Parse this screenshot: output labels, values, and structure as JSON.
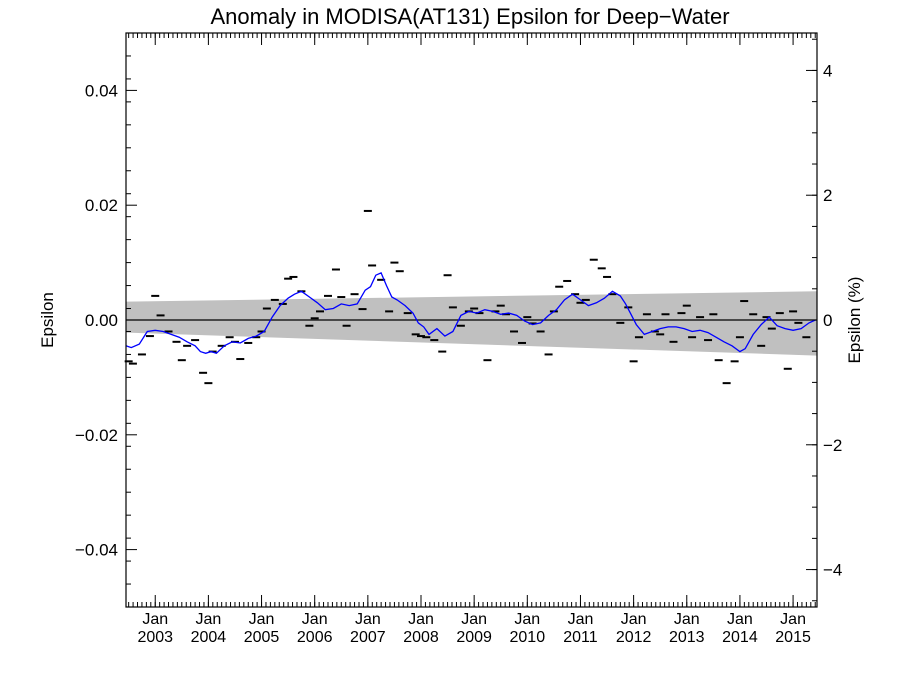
{
  "chart_data": {
    "type": "scatter",
    "title": "Anomaly in MODISA(AT131) Epsilon for Deep−Water",
    "ylabel": "Epsilon",
    "ylabel_right": "Epsilon (%)",
    "xlim": [
      2002.45,
      2015.45
    ],
    "ylim": [
      -0.05,
      0.05
    ],
    "y2lim": [
      -4.6,
      4.6
    ],
    "y_ticks": [
      -0.04,
      -0.02,
      0.0,
      0.02,
      0.04
    ],
    "y_tick_labels": [
      "−0.04",
      "−0.02",
      "0.00",
      "0.02",
      "0.04"
    ],
    "y2_ticks": [
      -4,
      -2,
      0,
      2,
      4
    ],
    "y2_tick_labels": [
      "−4",
      "−2",
      "0",
      "2",
      "4"
    ],
    "x_ticks": [
      2003,
      2004,
      2005,
      2006,
      2007,
      2008,
      2009,
      2010,
      2011,
      2012,
      2013,
      2014,
      2015
    ],
    "x_tick_month": "Jan",
    "x_tick_years": [
      "2003",
      "2004",
      "2005",
      "2006",
      "2007",
      "2008",
      "2009",
      "2010",
      "2011",
      "2012",
      "2013",
      "2014",
      "2015"
    ],
    "uncertainty_band": {
      "x": [
        2002.45,
        2015.45
      ],
      "upper": [
        0.0032,
        0.005
      ],
      "lower": [
        -0.0022,
        -0.0062
      ],
      "color": "#c0c0c0"
    },
    "zero_line": 0,
    "series": [
      {
        "kind": "points",
        "color": "#000000",
        "x": [
          2002.5,
          2002.58,
          2002.75,
          2002.9,
          2003.0,
          2003.1,
          2003.25,
          2003.4,
          2003.5,
          2003.6,
          2003.75,
          2003.9,
          2004.0,
          2004.08,
          2004.25,
          2004.4,
          2004.5,
          2004.6,
          2004.75,
          2004.9,
          2005.0,
          2005.1,
          2005.25,
          2005.4,
          2005.5,
          2005.6,
          2005.75,
          2005.9,
          2006.0,
          2006.1,
          2006.25,
          2006.4,
          2006.5,
          2006.6,
          2006.75,
          2006.9,
          2007.0,
          2007.08,
          2007.25,
          2007.4,
          2007.5,
          2007.6,
          2007.75,
          2007.9,
          2008.0,
          2008.1,
          2008.25,
          2008.4,
          2008.5,
          2008.6,
          2008.75,
          2008.9,
          2009.0,
          2009.1,
          2009.25,
          2009.4,
          2009.5,
          2009.6,
          2009.75,
          2009.9,
          2010.0,
          2010.1,
          2010.25,
          2010.4,
          2010.5,
          2010.6,
          2010.75,
          2010.9,
          2011.0,
          2011.1,
          2011.25,
          2011.4,
          2011.5,
          2011.6,
          2011.75,
          2011.9,
          2012.0,
          2012.1,
          2012.25,
          2012.4,
          2012.5,
          2012.6,
          2012.75,
          2012.9,
          2013.0,
          2013.1,
          2013.25,
          2013.4,
          2013.5,
          2013.6,
          2013.75,
          2013.9,
          2014.0,
          2014.08,
          2014.25,
          2014.4,
          2014.5,
          2014.6,
          2014.75,
          2014.9,
          2015.0,
          2015.1,
          2015.25
        ],
        "values": [
          -0.0072,
          -0.0076,
          -0.006,
          -0.0028,
          0.0042,
          0.0008,
          -0.002,
          -0.0038,
          -0.007,
          -0.0045,
          -0.0035,
          -0.0092,
          -0.011,
          -0.0055,
          -0.0045,
          -0.003,
          -0.0038,
          -0.0068,
          -0.004,
          -0.003,
          -0.002,
          0.002,
          0.0035,
          0.0028,
          0.0072,
          0.0075,
          0.005,
          -0.001,
          0.0003,
          0.0015,
          0.0042,
          0.0088,
          0.004,
          -0.001,
          0.0045,
          0.0019,
          0.019,
          0.0095,
          0.007,
          0.0015,
          0.01,
          0.0085,
          0.0012,
          -0.0025,
          -0.0028,
          -0.003,
          -0.0035,
          -0.0055,
          0.0078,
          0.0022,
          -0.001,
          0.0015,
          0.002,
          0.0012,
          -0.007,
          0.0015,
          0.0025,
          0.001,
          -0.002,
          -0.004,
          0.0005,
          -0.0006,
          -0.002,
          -0.006,
          0.0015,
          0.0058,
          0.0068,
          0.0045,
          0.003,
          0.0035,
          0.0105,
          0.009,
          0.0075,
          0.0045,
          -0.0005,
          0.0022,
          -0.0072,
          -0.003,
          0.001,
          -0.002,
          -0.0025,
          0.001,
          -0.0038,
          0.0012,
          0.0025,
          -0.003,
          0.0005,
          -0.0035,
          0.001,
          -0.007,
          -0.011,
          -0.0072,
          -0.003,
          0.0033,
          0.001,
          -0.0045,
          0.0005,
          -0.0015,
          0.0012,
          -0.0085,
          0.0015,
          -0.0005,
          -0.003
        ]
      },
      {
        "kind": "line",
        "color": "#0000ff",
        "x": [
          2002.45,
          2002.55,
          2002.7,
          2002.85,
          2003.0,
          2003.15,
          2003.3,
          2003.45,
          2003.6,
          2003.75,
          2003.85,
          2003.95,
          2004.05,
          2004.15,
          2004.3,
          2004.45,
          2004.6,
          2004.75,
          2004.9,
          2005.05,
          2005.2,
          2005.35,
          2005.5,
          2005.62,
          2005.75,
          2005.9,
          2006.05,
          2006.2,
          2006.35,
          2006.5,
          2006.65,
          2006.8,
          2006.95,
          2007.05,
          2007.15,
          2007.25,
          2007.35,
          2007.45,
          2007.55,
          2007.7,
          2007.85,
          2007.95,
          2008.05,
          2008.15,
          2008.3,
          2008.45,
          2008.6,
          2008.75,
          2008.9,
          2009.05,
          2009.2,
          2009.35,
          2009.5,
          2009.65,
          2009.8,
          2009.95,
          2010.1,
          2010.25,
          2010.4,
          2010.55,
          2010.7,
          2010.85,
          2011.0,
          2011.15,
          2011.3,
          2011.45,
          2011.6,
          2011.75,
          2011.85,
          2011.95,
          2012.05,
          2012.2,
          2012.35,
          2012.5,
          2012.65,
          2012.8,
          2012.95,
          2013.1,
          2013.25,
          2013.4,
          2013.55,
          2013.7,
          2013.85,
          2014.0,
          2014.1,
          2014.25,
          2014.4,
          2014.55,
          2014.7,
          2014.85,
          2015.0,
          2015.15,
          2015.3,
          2015.42
        ],
        "values": [
          -0.0045,
          -0.0048,
          -0.0042,
          -0.002,
          -0.0018,
          -0.002,
          -0.0025,
          -0.003,
          -0.0038,
          -0.0045,
          -0.0055,
          -0.0058,
          -0.0055,
          -0.0058,
          -0.0045,
          -0.0038,
          -0.004,
          -0.0032,
          -0.0028,
          -0.002,
          0.0005,
          0.0025,
          0.0038,
          0.0045,
          0.005,
          0.004,
          0.003,
          0.0018,
          0.002,
          0.0028,
          0.0025,
          0.0028,
          0.0052,
          0.0058,
          0.0078,
          0.0082,
          0.006,
          0.004,
          0.0035,
          0.0025,
          0.0012,
          -0.0005,
          -0.0012,
          -0.0025,
          -0.0015,
          -0.0028,
          -0.002,
          0.0008,
          0.0015,
          0.0012,
          0.0018,
          0.0015,
          0.001,
          0.0012,
          0.0008,
          -0.0002,
          -0.0008,
          -0.0005,
          0.0008,
          0.0018,
          0.0035,
          0.0045,
          0.0035,
          0.0025,
          0.003,
          0.0038,
          0.005,
          0.0042,
          0.0028,
          0.001,
          -0.0008,
          -0.0025,
          -0.002,
          -0.0015,
          -0.0012,
          -0.0012,
          -0.0015,
          -0.002,
          -0.0018,
          -0.0022,
          -0.003,
          -0.0038,
          -0.0045,
          -0.0055,
          -0.005,
          -0.0025,
          -0.0008,
          0.0005,
          -0.001,
          -0.0015,
          -0.0018,
          -0.0015,
          -0.0005,
          0.0
        ]
      }
    ]
  }
}
